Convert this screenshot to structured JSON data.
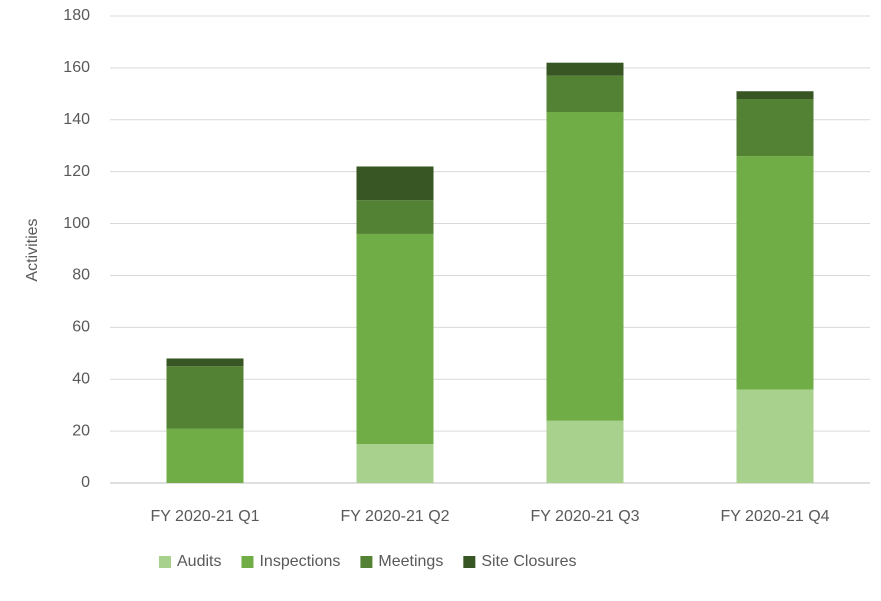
{
  "chart_data": {
    "type": "stacked_bar",
    "y_label": "Activities",
    "categories": [
      "FY 2020-21 Q1",
      "FY 2020-21 Q2",
      "FY 2020-21 Q3",
      "FY 2020-21 Q4"
    ],
    "series": [
      {
        "name": "Audits",
        "color": "#a9d18e",
        "values": [
          0,
          15,
          24,
          36
        ]
      },
      {
        "name": "Inspections",
        "color": "#70ad47",
        "values": [
          21,
          81,
          119,
          90
        ]
      },
      {
        "name": "Meetings",
        "color": "#548235",
        "values": [
          24,
          13,
          14,
          22
        ]
      },
      {
        "name": "Site Closures",
        "color": "#375623",
        "values": [
          3,
          13,
          5,
          3
        ]
      }
    ],
    "ylim": [
      0,
      180
    ],
    "yticks": [
      0,
      20,
      40,
      60,
      80,
      100,
      120,
      140,
      160,
      180
    ],
    "grid": true,
    "legend": "bottom"
  }
}
